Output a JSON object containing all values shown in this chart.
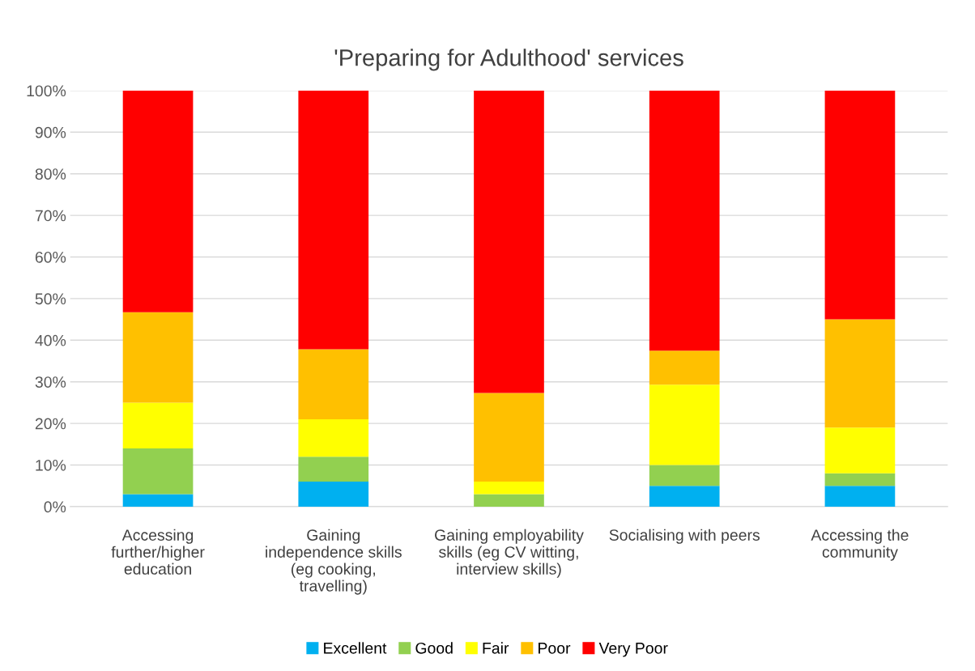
{
  "chart_data": {
    "type": "bar",
    "title": "'Preparing for Adulthood' services",
    "stacked": true,
    "categories": [
      "Accessing\nfurther/higher\neducation",
      "Gaining\nindependence skills\n(eg cooking,\ntravelling)",
      "Gaining employability\nskills (eg CV witting,\ninterview skills)",
      "Socialising with peers",
      "Accessing the\ncommunity"
    ],
    "series": [
      {
        "name": "Excellent",
        "color": "#00b0f0",
        "values": [
          3,
          6,
          0,
          5,
          5
        ]
      },
      {
        "name": "Good",
        "color": "#92d050",
        "values": [
          11,
          6,
          3,
          5,
          3
        ]
      },
      {
        "name": "Fair",
        "color": "#ffff00",
        "values": [
          11,
          9,
          3,
          19.3,
          11
        ]
      },
      {
        "name": "Poor",
        "color": "#ffc000",
        "values": [
          21.7,
          16.8,
          21.3,
          8.2,
          26
        ]
      },
      {
        "name": "Very Poor",
        "color": "#ff0000",
        "values": [
          53.5,
          62.3,
          72.7,
          62.5,
          55
        ]
      }
    ],
    "ylim": [
      0,
      100
    ],
    "yticks": [
      {
        "value": 0,
        "label": "0%"
      },
      {
        "value": 10,
        "label": "10%"
      },
      {
        "value": 20,
        "label": "20%"
      },
      {
        "value": 30,
        "label": "30%"
      },
      {
        "value": 40,
        "label": "40%"
      },
      {
        "value": 50,
        "label": "50%"
      },
      {
        "value": 60,
        "label": "60%"
      },
      {
        "value": 70,
        "label": "70%"
      },
      {
        "value": 80,
        "label": "80%"
      },
      {
        "value": 90,
        "label": "90%"
      },
      {
        "value": 100,
        "label": "100%"
      }
    ],
    "grid": "y",
    "legend": "bottom"
  }
}
